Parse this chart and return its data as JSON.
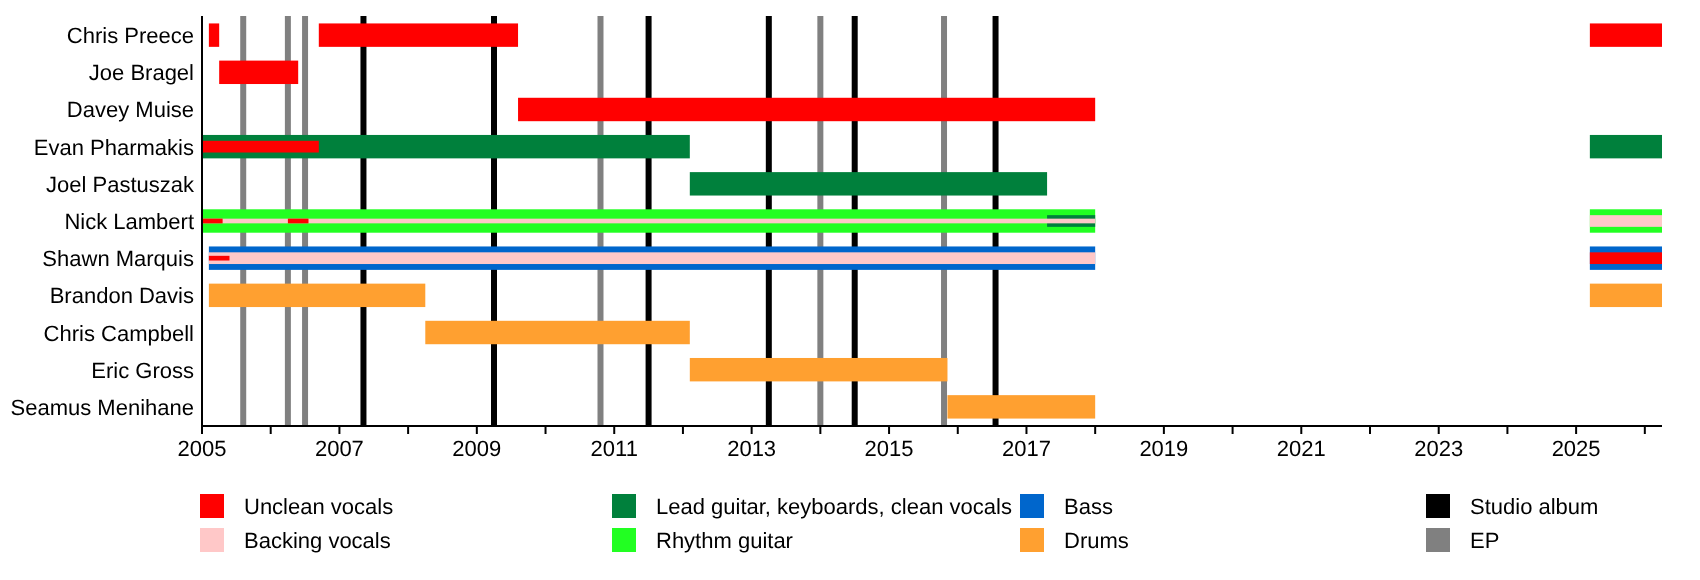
{
  "chart_data": {
    "type": "bar",
    "orientation": "horizontal",
    "legend": "bottom",
    "grid": false,
    "categories": [
      "Chris Preece",
      "Joe Bragel",
      "Davey Muise",
      "Evan Pharmakis",
      "Joel Pastuszak",
      "Nick Lambert",
      "Shawn Marquis",
      "Brandon Davis",
      "Chris Campbell",
      "Eric Gross",
      "Seamus Menihane"
    ],
    "xlim": [
      2005,
      2026.25
    ],
    "xticks": [
      2005,
      {
        "value": 2006,
        "label": null
      },
      2007,
      {
        "value": 2008,
        "label": null
      },
      2009,
      {
        "value": 2010,
        "label": null
      },
      2011,
      {
        "value": 2012,
        "label": null
      },
      2013,
      {
        "value": 2014,
        "label": null
      },
      2015,
      {
        "value": 2016,
        "label": null
      },
      2017,
      {
        "value": 2018,
        "label": null
      },
      2019,
      {
        "value": 2020,
        "label": null
      },
      2021,
      {
        "value": 2022,
        "label": null
      },
      2023,
      {
        "value": 2024,
        "label": null
      },
      2025,
      {
        "value": 2026,
        "label": null
      }
    ],
    "series": [
      {
        "name": "Unclean vocals",
        "color": "#ff0000",
        "base": [
          2006.7,
          2005.25,
          2009.6,
          2005,
          null,
          2005,
          2005.1,
          null,
          null,
          null,
          null
        ],
        "values": [
          2.9,
          1.15,
          8.4,
          1.7,
          null,
          0.3,
          0.3,
          null,
          null,
          null,
          null
        ]
      },
      {
        "color": "#ff0000",
        "base": [
          2005.1,
          null,
          null,
          null,
          null,
          2006.25,
          null,
          null,
          null,
          null,
          null
        ],
        "values": [
          0.15,
          null,
          null,
          null,
          null,
          0.3,
          null,
          null,
          null,
          null,
          null
        ]
      },
      {
        "color": "#ff0000",
        "base": [
          2025.2,
          null,
          null,
          null,
          null,
          null,
          2025.2,
          null,
          null,
          null,
          null
        ],
        "values": [
          1.05,
          null,
          null,
          null,
          null,
          null,
          1.05,
          null,
          null,
          null,
          null
        ]
      },
      {
        "name": "Backing vocals",
        "color": "#ffc8c8",
        "base": [
          null,
          null,
          null,
          null,
          null,
          2005,
          2005.1,
          null,
          null,
          null,
          null
        ],
        "values": [
          null,
          null,
          null,
          null,
          null,
          13,
          12.9,
          null,
          null,
          null,
          null
        ]
      },
      {
        "color": "#ffc8c8",
        "base": [
          null,
          null,
          null,
          null,
          null,
          2025.2,
          null,
          null,
          null,
          null,
          null
        ],
        "values": [
          null,
          null,
          null,
          null,
          null,
          1.05,
          null,
          null,
          null,
          null,
          null
        ]
      },
      {
        "name": "Lead guitar, keyboards, clean vocals",
        "color": "#00803c",
        "base": [
          null,
          null,
          null,
          2005,
          2012.1,
          2017.3,
          null,
          null,
          null,
          null,
          null
        ],
        "values": [
          null,
          null,
          null,
          7.1,
          5.2,
          0.7,
          null,
          null,
          null,
          null,
          null
        ]
      },
      {
        "color": "#00803c",
        "base": [
          null,
          null,
          null,
          2025.2,
          null,
          null,
          null,
          null,
          null,
          null,
          null
        ],
        "values": [
          null,
          null,
          null,
          1.05,
          null,
          null,
          null,
          null,
          null,
          null,
          null
        ]
      },
      {
        "name": "Rhythm guitar",
        "color": "#22ff22",
        "base": [
          null,
          null,
          null,
          null,
          null,
          2005,
          null,
          null,
          null,
          null,
          null
        ],
        "values": [
          null,
          null,
          null,
          null,
          null,
          13,
          null,
          null,
          null,
          null,
          null
        ]
      },
      {
        "color": "#22ff22",
        "base": [
          null,
          null,
          null,
          null,
          null,
          2025.2,
          null,
          null,
          null,
          null,
          null
        ],
        "values": [
          null,
          null,
          null,
          null,
          null,
          1.05,
          null,
          null,
          null,
          null,
          null
        ]
      },
      {
        "name": "Bass",
        "color": "#0066cc",
        "base": [
          null,
          null,
          null,
          null,
          null,
          null,
          2005.1,
          null,
          null,
          null,
          null
        ],
        "values": [
          null,
          null,
          null,
          null,
          null,
          null,
          12.9,
          null,
          null,
          null,
          null
        ]
      },
      {
        "color": "#0066cc",
        "base": [
          null,
          null,
          null,
          null,
          null,
          null,
          2025.2,
          null,
          null,
          null,
          null
        ],
        "values": [
          null,
          null,
          null,
          null,
          null,
          null,
          1.05,
          null,
          null,
          null,
          null
        ]
      },
      {
        "name": "Drums",
        "color": "#ffa030",
        "base": [
          null,
          null,
          null,
          null,
          null,
          null,
          null,
          2005.1,
          2008.25,
          2012.1,
          2015.85
        ],
        "values": [
          null,
          null,
          null,
          null,
          null,
          null,
          null,
          3.15,
          3.85,
          3.75,
          2.15
        ]
      },
      {
        "color": "#ffa030",
        "base": [
          null,
          null,
          null,
          null,
          null,
          null,
          null,
          2025.2,
          null,
          null,
          null
        ],
        "values": [
          null,
          null,
          null,
          null,
          null,
          null,
          null,
          1.05,
          null,
          null,
          null
        ]
      }
    ],
    "ref_lines": [
      {
        "axis": "x",
        "value": 2007.35,
        "label": "Studio album",
        "color": "#000000"
      },
      {
        "axis": "x",
        "value": 2009.25,
        "color": "#000000"
      },
      {
        "axis": "x",
        "value": 2011.5,
        "color": "#000000"
      },
      {
        "axis": "x",
        "value": 2013.25,
        "color": "#000000"
      },
      {
        "axis": "x",
        "value": 2014.5,
        "color": "#000000"
      },
      {
        "axis": "x",
        "value": 2016.55,
        "color": "#000000"
      },
      {
        "axis": "x",
        "value": 2005.6,
        "label": "EP",
        "color": "#808080"
      },
      {
        "axis": "x",
        "value": 2006.25,
        "color": "#808080"
      },
      {
        "axis": "x",
        "value": 2006.5,
        "color": "#808080"
      },
      {
        "axis": "x",
        "value": 2010.8,
        "color": "#808080"
      },
      {
        "axis": "x",
        "value": 2014.0,
        "color": "#808080"
      },
      {
        "axis": "x",
        "value": 2015.8,
        "color": "#808080"
      }
    ]
  }
}
